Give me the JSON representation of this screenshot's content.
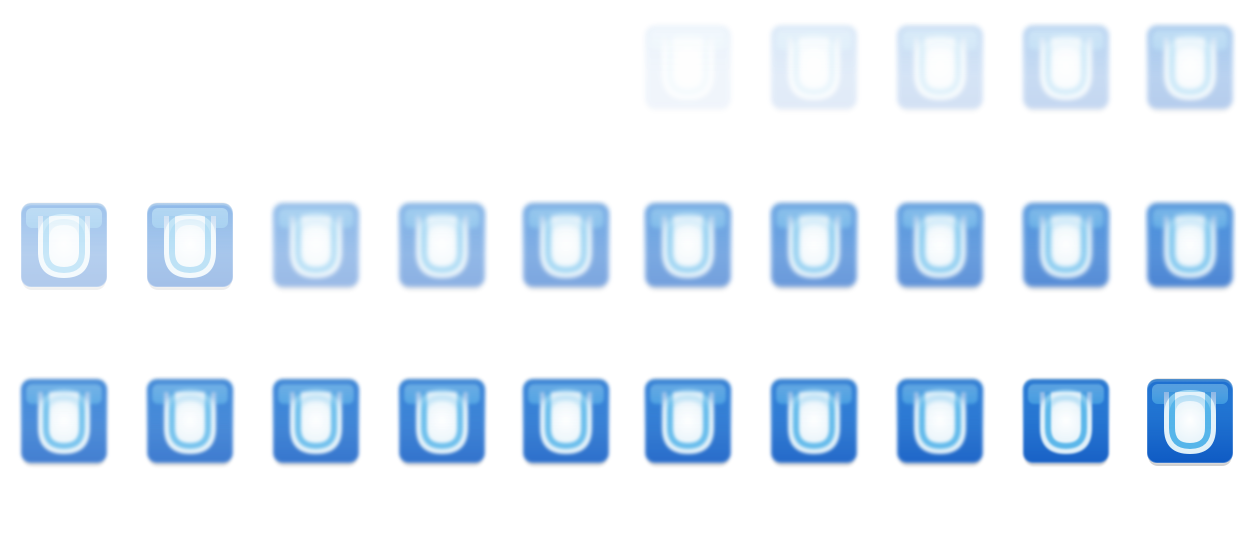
{
  "icon": {
    "name": "u-logo-icon",
    "letter": "U",
    "colors": {
      "dark_blue": "#0f5bc4",
      "mid_blue": "#2f86dc",
      "light_blue": "#7fd0f3",
      "letter_white": "#f4f8fb"
    }
  },
  "frames": [
    {
      "opacity": 0.06,
      "blur": 2.5
    },
    {
      "opacity": 0.12,
      "blur": 2.5
    },
    {
      "opacity": 0.18,
      "blur": 2.5
    },
    {
      "opacity": 0.24,
      "blur": 2.5
    },
    {
      "opacity": 0.3,
      "blur": 2.5
    },
    {
      "opacity": 0.32,
      "blur": 0
    },
    {
      "opacity": 0.38,
      "blur": 0
    },
    {
      "opacity": 0.42,
      "blur": 2.5
    },
    {
      "opacity": 0.48,
      "blur": 2.5
    },
    {
      "opacity": 0.54,
      "blur": 2.5
    },
    {
      "opacity": 0.58,
      "blur": 2.5
    },
    {
      "opacity": 0.62,
      "blur": 2.5
    },
    {
      "opacity": 0.66,
      "blur": 2.5
    },
    {
      "opacity": 0.7,
      "blur": 2.5
    },
    {
      "opacity": 0.74,
      "blur": 2.5
    },
    {
      "opacity": 0.78,
      "blur": 1.5
    },
    {
      "opacity": 0.8,
      "blur": 1.5
    },
    {
      "opacity": 0.83,
      "blur": 1.5
    },
    {
      "opacity": 0.85,
      "blur": 1.5
    },
    {
      "opacity": 0.87,
      "blur": 1.5
    },
    {
      "opacity": 0.89,
      "blur": 1.5
    },
    {
      "opacity": 0.91,
      "blur": 1.5
    },
    {
      "opacity": 0.93,
      "blur": 1.5
    },
    {
      "opacity": 0.96,
      "blur": 1.0
    },
    {
      "opacity": 1.0,
      "blur": 0
    }
  ]
}
